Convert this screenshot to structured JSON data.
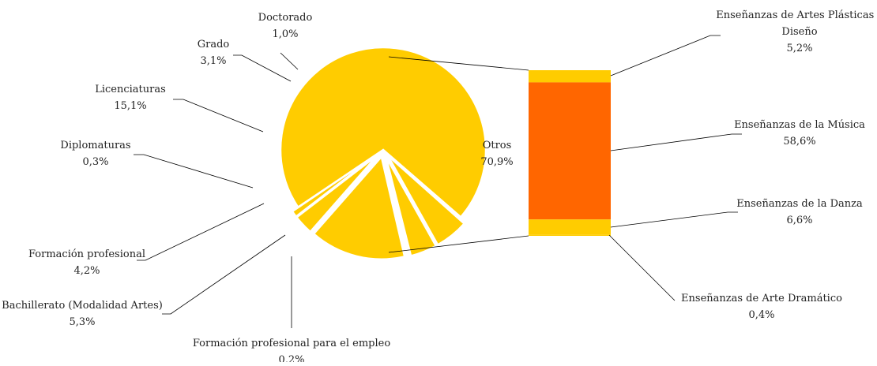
{
  "chart_data": {
    "type": "pie",
    "subtype": "bar-of-pie",
    "colors": {
      "slice": "#FFCC00",
      "highlight": "#FF6600",
      "leader": "#000000",
      "background": "#ffffff"
    },
    "pie": {
      "slices": [
        {
          "name": "Otros",
          "value": 70.9,
          "pct": "70,9%"
        },
        {
          "name": "Formación profesional para el empleo",
          "value": 0.2,
          "pct": "0,2%"
        },
        {
          "name": "Bachillerato (Modalidad Artes)",
          "value": 5.3,
          "pct": "5,3%"
        },
        {
          "name": "Formación profesional",
          "value": 4.2,
          "pct": "4,2%"
        },
        {
          "name": "Diplomaturas",
          "value": 0.3,
          "pct": "0,3%"
        },
        {
          "name": "Licenciaturas",
          "value": 15.1,
          "pct": "15,1%"
        },
        {
          "name": "Grado",
          "value": 3.1,
          "pct": "3,1%"
        },
        {
          "name": "Doctorado",
          "value": 1.0,
          "pct": "1,0%"
        }
      ]
    },
    "bar": {
      "segments": [
        {
          "name": "Enseñanzas de Artes Plásticas y Diseño",
          "value": 5.2,
          "pct": "5,2%"
        },
        {
          "name": "Enseñanzas de la Música",
          "value": 58.6,
          "pct": "58,6%"
        },
        {
          "name": "Enseñanzas de la Danza",
          "value": 6.6,
          "pct": "6,6%"
        },
        {
          "name": "Enseñanzas de Arte Dramático",
          "value": 0.4,
          "pct": "0,4%"
        }
      ]
    }
  }
}
